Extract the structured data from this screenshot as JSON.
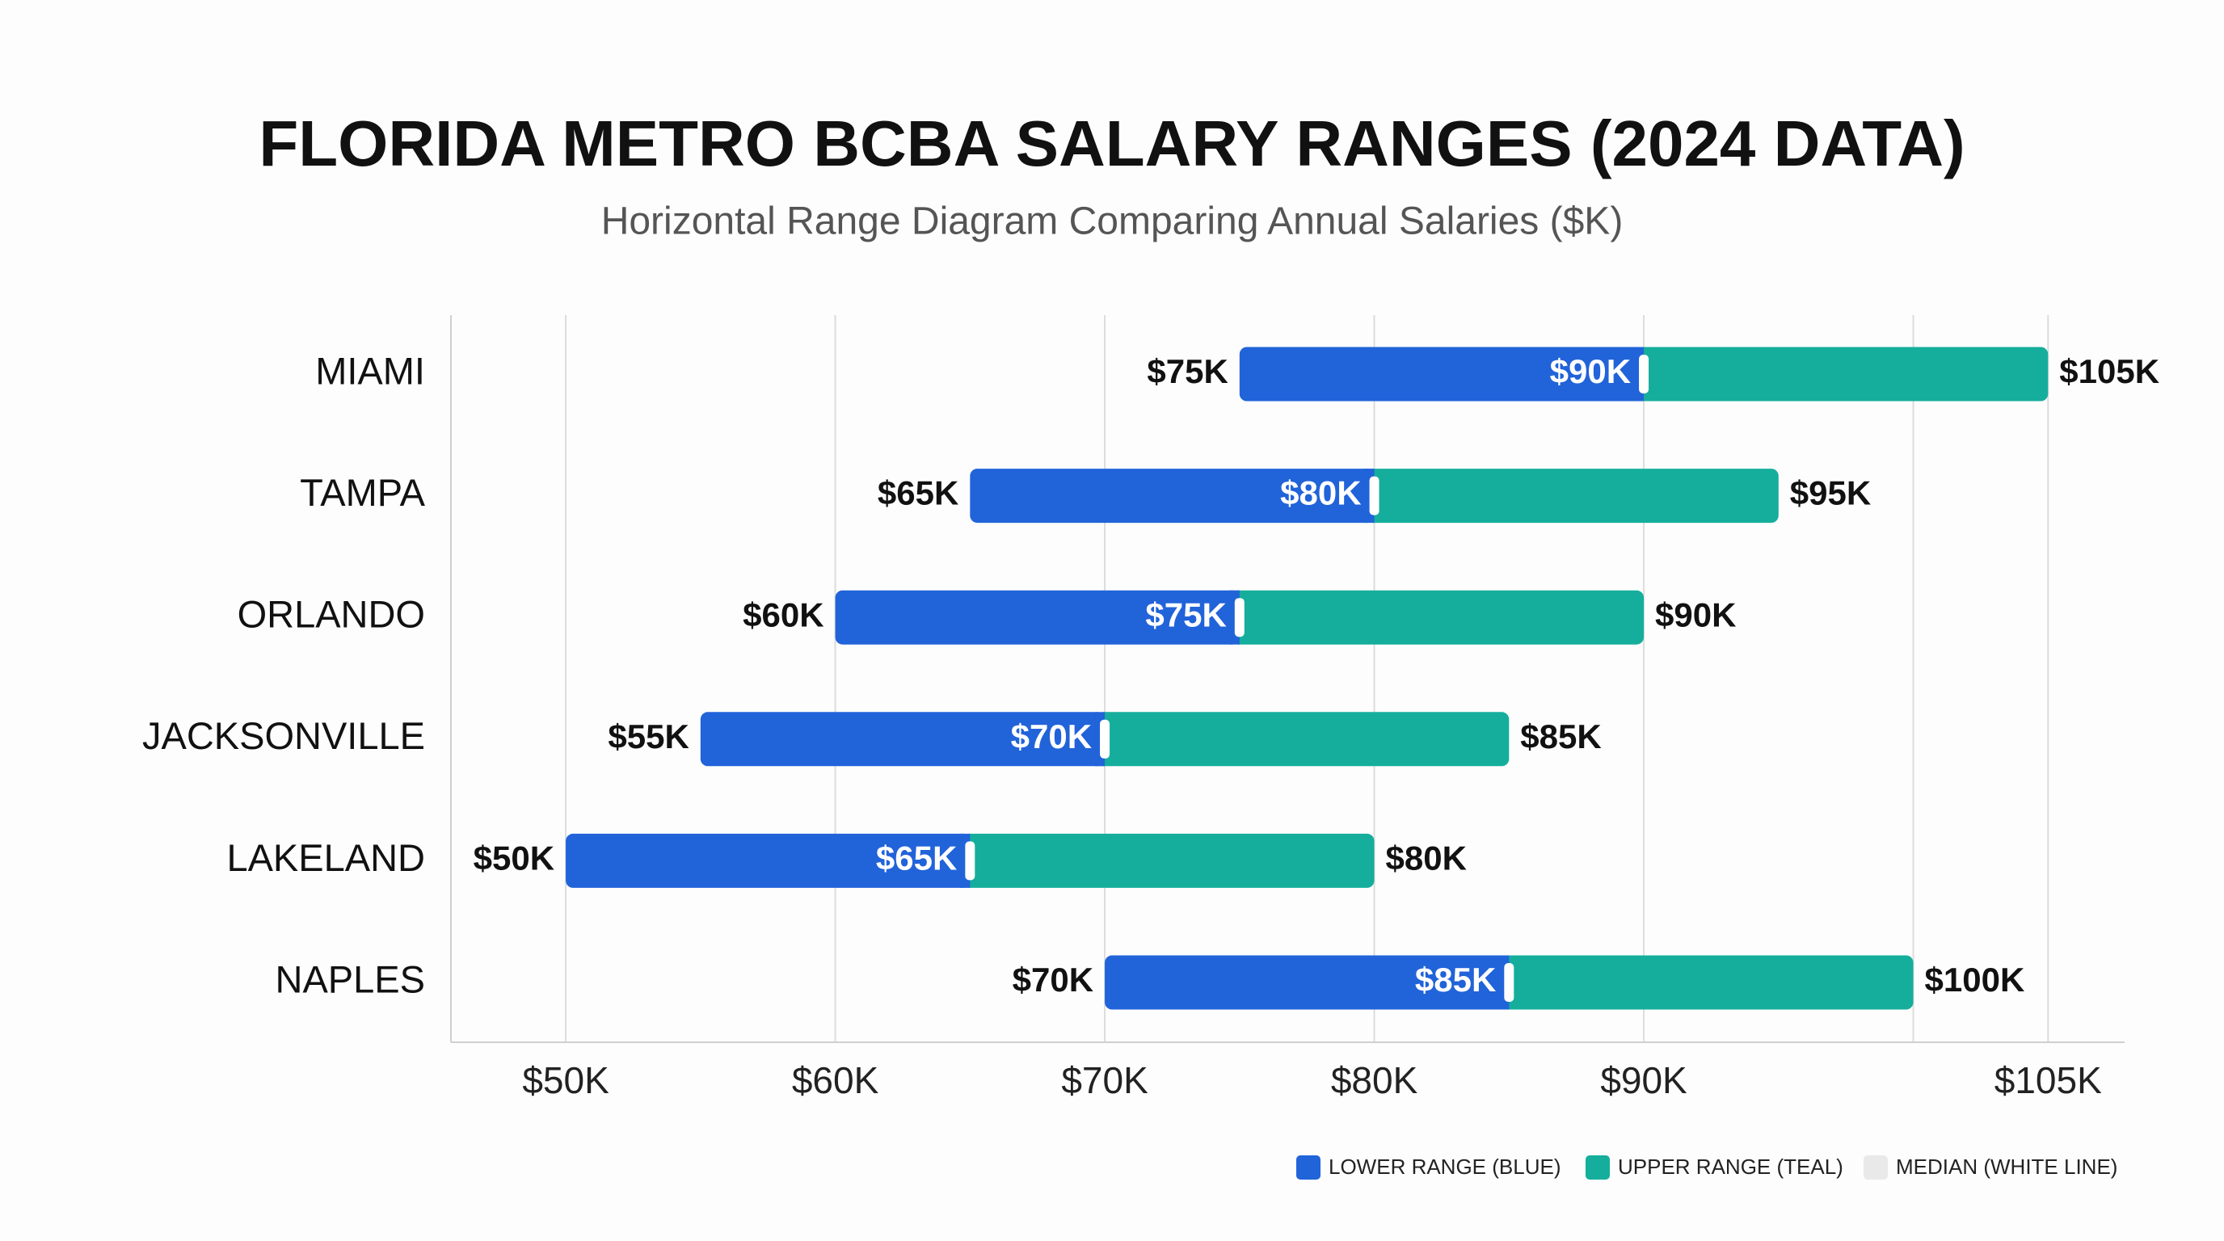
{
  "chart_data": {
    "type": "range",
    "title": "FLORIDA METRO BCBA SALARY RANGES (2024 DATA)",
    "subtitle": "Horizontal Range Diagram Comparing Annual Salaries ($K)",
    "categories": [
      "MIAMI",
      "TAMPA",
      "ORLANDO",
      "JACKSONVILLE",
      "LAKELAND",
      "NAPLES"
    ],
    "low": [
      75,
      65,
      60,
      55,
      50,
      70
    ],
    "low_labels": [
      "$75K",
      "$65K",
      "$60K",
      "$55K",
      "$50K",
      "$70K"
    ],
    "median": [
      90,
      80,
      75,
      70,
      65,
      85
    ],
    "median_labels": [
      "$90K",
      "$80K",
      "$75K",
      "$70K",
      "$65K",
      "$85K"
    ],
    "high": [
      105,
      95,
      90,
      85,
      80,
      100
    ],
    "high_labels": [
      "$105K",
      "$95K",
      "$90K",
      "$85K",
      "$80K",
      "$100K"
    ],
    "series": [
      {
        "name": "LOWER RANGE (BLUE)",
        "color": "#2163d9"
      },
      {
        "name": "UPPER RANGE (TEAL)",
        "color": "#15ae9c"
      }
    ],
    "median_line": {
      "name": "MEDIAN (WHITE LINE)",
      "color": "#ffffff",
      "swatch_color": "#e9e9e9"
    },
    "xlim": [
      45.74,
      107.84
    ],
    "xticks": [
      {
        "value": 50,
        "label": "$50K"
      },
      {
        "value": 60,
        "label": "$60K"
      },
      {
        "value": 70,
        "label": "$70K"
      },
      {
        "value": 80,
        "label": "$80K"
      },
      {
        "value": 90,
        "label": "$90K"
      },
      {
        "value": 100,
        "label": null
      },
      {
        "value": 105,
        "label": "$105K"
      }
    ],
    "grid": true
  }
}
